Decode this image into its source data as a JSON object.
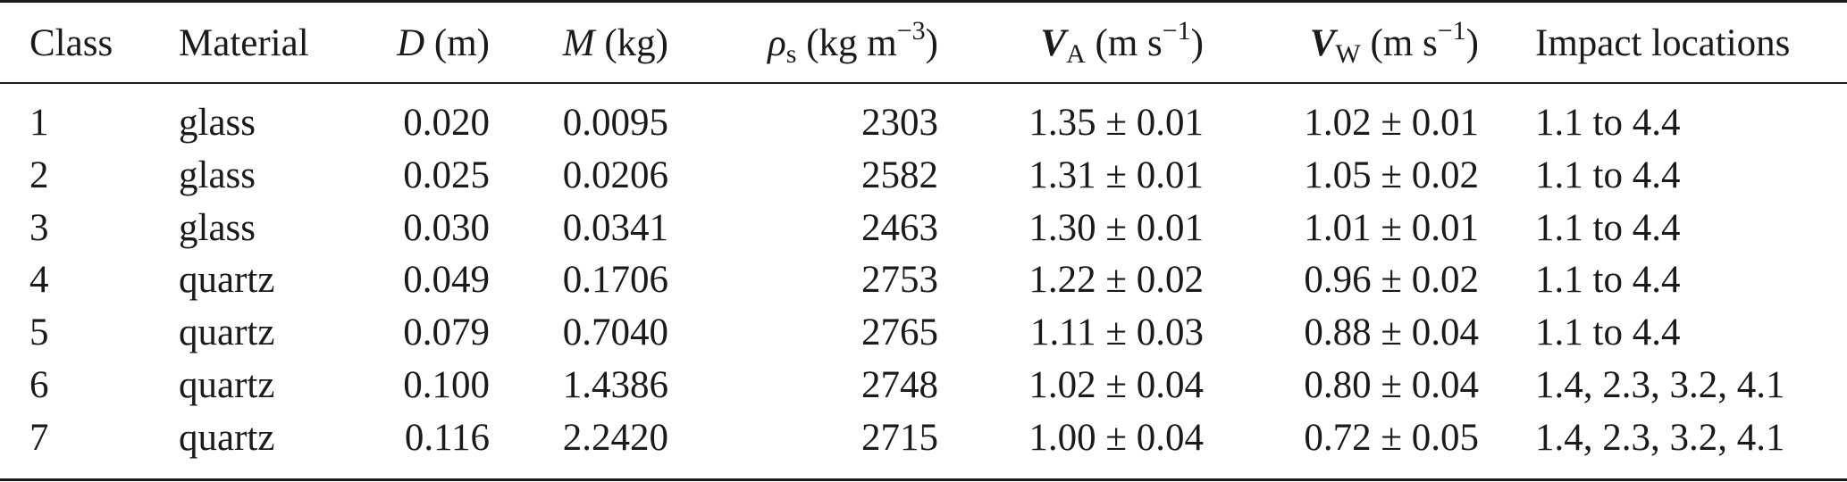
{
  "table": {
    "headers": {
      "class": "Class",
      "material": "Material",
      "d_sym": "D",
      "d_unit": "(m)",
      "m_sym": "M",
      "m_unit": "(kg)",
      "rho_sym": "ρ",
      "rho_sub": "s",
      "rho_unit": "(kg m",
      "rho_exp": "−3",
      "rho_close": ")",
      "va_sym": "V",
      "va_sub": "A",
      "va_unit": "(m s",
      "va_exp": "−1",
      "va_close": ")",
      "vw_sym": "V",
      "vw_sub": "W",
      "vw_unit": "(m s",
      "vw_exp": "−1",
      "vw_close": ")",
      "impact": "Impact locations"
    },
    "rows": [
      {
        "class": "1",
        "material": "glass",
        "d": "0.020",
        "m": "0.0095",
        "rho": "2303",
        "va": "1.35 ± 0.01",
        "vw": "1.02 ± 0.01",
        "impact": "1.1 to 4.4"
      },
      {
        "class": "2",
        "material": "glass",
        "d": "0.025",
        "m": "0.0206",
        "rho": "2582",
        "va": "1.31 ± 0.01",
        "vw": "1.05 ± 0.02",
        "impact": "1.1 to 4.4"
      },
      {
        "class": "3",
        "material": "glass",
        "d": "0.030",
        "m": "0.0341",
        "rho": "2463",
        "va": "1.30 ± 0.01",
        "vw": "1.01 ± 0.01",
        "impact": "1.1 to 4.4"
      },
      {
        "class": "4",
        "material": "quartz",
        "d": "0.049",
        "m": "0.1706",
        "rho": "2753",
        "va": "1.22 ± 0.02",
        "vw": "0.96 ± 0.02",
        "impact": "1.1 to 4.4"
      },
      {
        "class": "5",
        "material": "quartz",
        "d": "0.079",
        "m": "0.7040",
        "rho": "2765",
        "va": "1.11 ± 0.03",
        "vw": "0.88 ± 0.04",
        "impact": "1.1 to 4.4"
      },
      {
        "class": "6",
        "material": "quartz",
        "d": "0.100",
        "m": "1.4386",
        "rho": "2748",
        "va": "1.02 ± 0.04",
        "vw": "0.80 ± 0.04",
        "impact": "1.4, 2.3, 3.2, 4.1"
      },
      {
        "class": "7",
        "material": "quartz",
        "d": "0.116",
        "m": "2.2420",
        "rho": "2715",
        "va": "1.00 ± 0.04",
        "vw": "0.72 ± 0.05",
        "impact": "1.4, 2.3, 3.2, 4.1"
      }
    ]
  }
}
